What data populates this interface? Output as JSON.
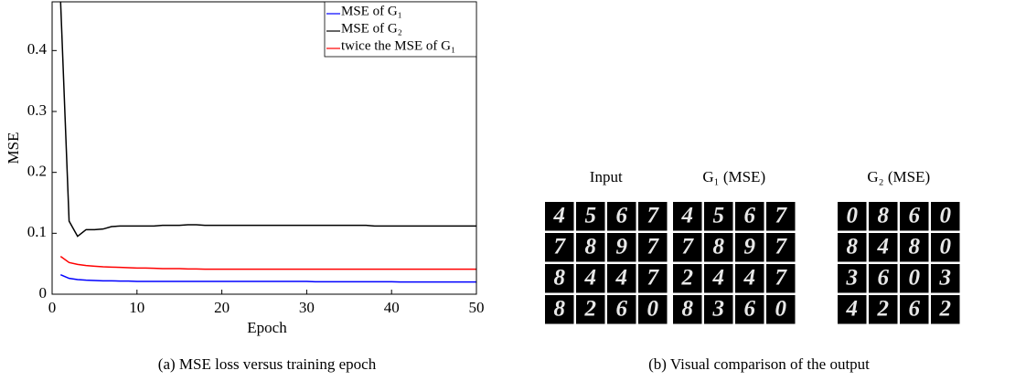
{
  "chart_data": {
    "type": "line",
    "x_label": "Epoch",
    "y_label": "MSE",
    "x": [
      1,
      2,
      3,
      4,
      5,
      6,
      7,
      8,
      9,
      10,
      11,
      12,
      13,
      14,
      15,
      16,
      17,
      18,
      19,
      20,
      21,
      22,
      23,
      24,
      25,
      26,
      27,
      28,
      29,
      30,
      31,
      32,
      33,
      34,
      35,
      36,
      37,
      38,
      39,
      40,
      41,
      42,
      43,
      44,
      45,
      46,
      47,
      48,
      49,
      50
    ],
    "series": [
      {
        "name": "MSE of G₁",
        "color": "#0000ff",
        "values": [
          0.032,
          0.026,
          0.024,
          0.023,
          0.0225,
          0.022,
          0.022,
          0.0215,
          0.0215,
          0.021,
          0.021,
          0.021,
          0.021,
          0.021,
          0.021,
          0.021,
          0.021,
          0.021,
          0.021,
          0.021,
          0.021,
          0.021,
          0.021,
          0.021,
          0.021,
          0.021,
          0.021,
          0.021,
          0.021,
          0.021,
          0.0205,
          0.0205,
          0.0205,
          0.0205,
          0.0205,
          0.0205,
          0.0205,
          0.0205,
          0.0205,
          0.0205,
          0.02,
          0.02,
          0.02,
          0.02,
          0.02,
          0.02,
          0.02,
          0.02,
          0.02,
          0.02
        ]
      },
      {
        "name": "MSE of G₂",
        "color": "#000000",
        "values": [
          0.48,
          0.12,
          0.095,
          0.106,
          0.106,
          0.107,
          0.111,
          0.112,
          0.112,
          0.112,
          0.112,
          0.112,
          0.113,
          0.113,
          0.113,
          0.114,
          0.114,
          0.113,
          0.113,
          0.113,
          0.113,
          0.113,
          0.113,
          0.113,
          0.113,
          0.113,
          0.113,
          0.113,
          0.113,
          0.113,
          0.113,
          0.113,
          0.113,
          0.113,
          0.113,
          0.113,
          0.113,
          0.112,
          0.112,
          0.112,
          0.112,
          0.112,
          0.112,
          0.112,
          0.112,
          0.112,
          0.112,
          0.112,
          0.112,
          0.112
        ]
      },
      {
        "name": "twice the MSE of G₁",
        "color": "#ff0000",
        "values": [
          0.062,
          0.052,
          0.049,
          0.047,
          0.046,
          0.045,
          0.0445,
          0.044,
          0.0435,
          0.043,
          0.043,
          0.0425,
          0.042,
          0.042,
          0.042,
          0.0415,
          0.0415,
          0.041,
          0.041,
          0.041,
          0.041,
          0.041,
          0.041,
          0.041,
          0.041,
          0.041,
          0.041,
          0.041,
          0.041,
          0.041,
          0.041,
          0.041,
          0.041,
          0.041,
          0.041,
          0.041,
          0.041,
          0.041,
          0.041,
          0.041,
          0.041,
          0.041,
          0.041,
          0.041,
          0.041,
          0.041,
          0.041,
          0.041,
          0.041,
          0.041
        ]
      }
    ],
    "xlim": [
      0,
      50
    ],
    "xticks": [
      0,
      10,
      20,
      30,
      40,
      50
    ],
    "ylim": [
      0,
      0.48
    ],
    "yticks": [
      0,
      0.1,
      0.2,
      0.3,
      0.4
    ],
    "legend": "top-right",
    "grid": false
  },
  "captions": [
    "(a)  MSE loss versus training epoch",
    "(b)  Visual comparison of the output"
  ],
  "panels": [
    {
      "label": "Input",
      "rows": [
        [
          "4",
          "5",
          "6",
          "7"
        ],
        [
          "7",
          "8",
          "9",
          "7"
        ],
        [
          "8",
          "4",
          "4",
          "7"
        ],
        [
          "8",
          "2",
          "6",
          "0"
        ]
      ]
    },
    {
      "label": "G₁ (MSE)",
      "rows": [
        [
          "4",
          "5",
          "6",
          "7"
        ],
        [
          "7",
          "8",
          "9",
          "7"
        ],
        [
          "2",
          "4",
          "4",
          "7"
        ],
        [
          "8",
          "3",
          "6",
          "0"
        ]
      ]
    },
    {
      "label": "G₂ (MSE)",
      "rows": [
        [
          "0",
          "8",
          "6",
          "0"
        ],
        [
          "8",
          "4",
          "8",
          "0"
        ],
        [
          "3",
          "6",
          "0",
          "3"
        ],
        [
          "4",
          "2",
          "6",
          "2"
        ]
      ]
    }
  ]
}
